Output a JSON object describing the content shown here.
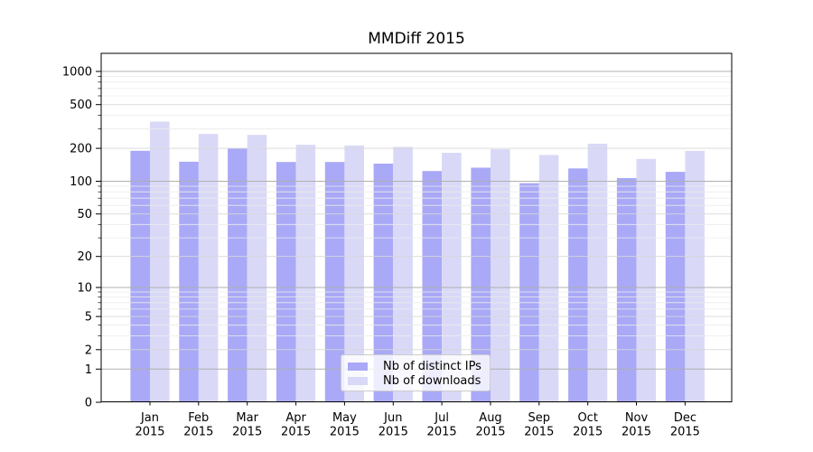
{
  "chart_data": {
    "type": "bar",
    "title": "MMDiff 2015",
    "year": "2015",
    "categories": [
      "Jan",
      "Feb",
      "Mar",
      "Apr",
      "May",
      "Jun",
      "Jul",
      "Aug",
      "Sep",
      "Oct",
      "Nov",
      "Dec"
    ],
    "series": [
      {
        "name": "Nb of distinct IPs",
        "color": "#a9a9f7",
        "values": [
          190,
          151,
          200,
          150,
          150,
          145,
          124,
          133,
          96,
          131,
          107,
          122
        ]
      },
      {
        "name": "Nb of downloads",
        "color": "#d9d9f7",
        "values": [
          350,
          270,
          265,
          215,
          212,
          206,
          182,
          196,
          174,
          220,
          160,
          190
        ]
      }
    ],
    "yscale": "log10(v+1)",
    "ylim": [
      0,
      1460
    ],
    "yticks_labeled": [
      0,
      1,
      2,
      5,
      10,
      20,
      50,
      100,
      200,
      500,
      1000
    ],
    "yticks_major": [
      1,
      10,
      100,
      1000
    ],
    "grid": "both",
    "legend_position": "lower center",
    "colors": {
      "grid_major": "#b0b0b0",
      "grid_minor_labeled": "#d8d8d8",
      "grid_minor": "#ececec",
      "spine": "#000000"
    }
  }
}
